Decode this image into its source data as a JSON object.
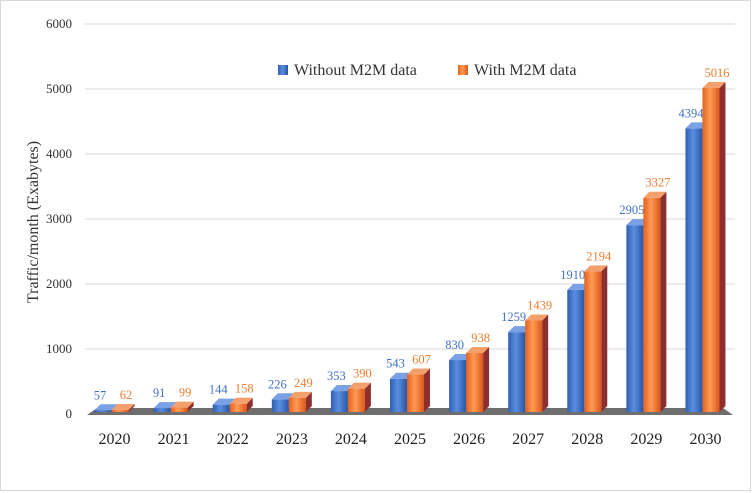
{
  "chart_data": {
    "type": "bar",
    "ylabel": "Traffic/month (Exabytes)",
    "ylim": [
      0,
      6000
    ],
    "yticks": [
      0,
      1000,
      2000,
      3000,
      4000,
      5000,
      6000
    ],
    "grid": true,
    "legend_position": "top-center",
    "categories": [
      "2020",
      "2021",
      "2022",
      "2023",
      "2024",
      "2025",
      "2026",
      "2027",
      "2028",
      "2029",
      "2030"
    ],
    "series": [
      {
        "name": "Without M2M data",
        "color": "#4472c4",
        "label_color": "#4472c4",
        "values": [
          57,
          91,
          144,
          226,
          353,
          543,
          830,
          1259,
          1910,
          2905,
          4394
        ]
      },
      {
        "name": "With M2M data",
        "color": "#ed7d31",
        "label_color": "#ed7d31",
        "values": [
          62,
          99,
          158,
          249,
          390,
          607,
          938,
          1439,
          2194,
          3327,
          5016
        ]
      }
    ]
  }
}
